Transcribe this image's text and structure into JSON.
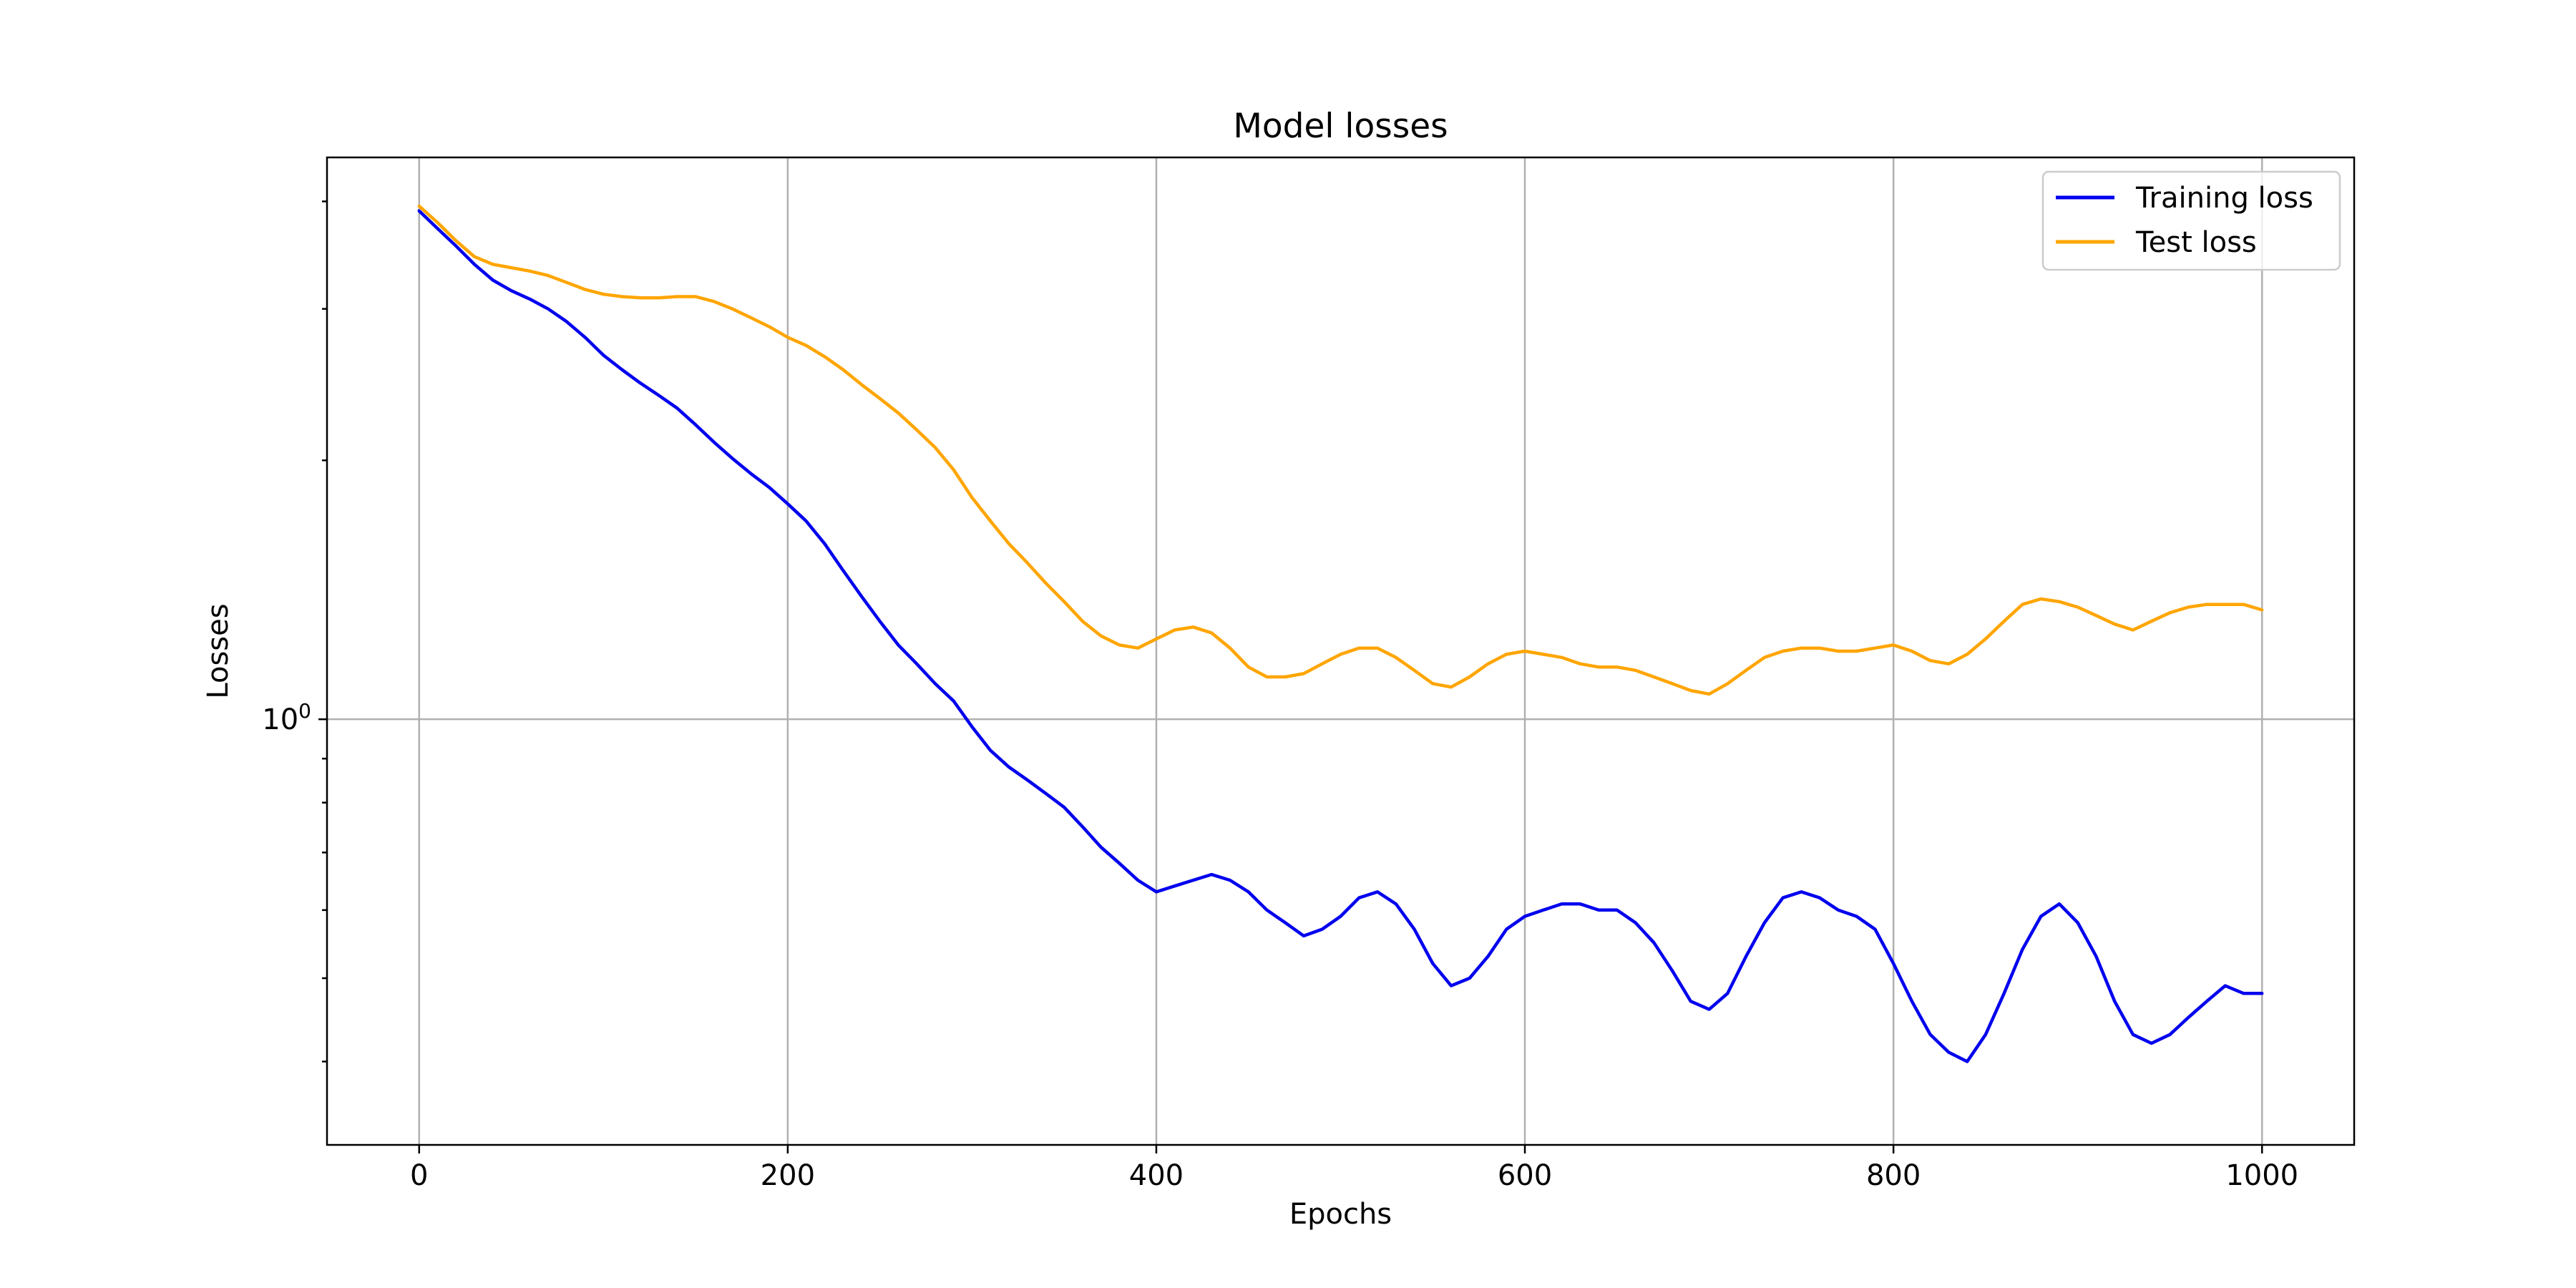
{
  "chart_data": {
    "type": "line",
    "title": "Model losses",
    "xlabel": "Epochs",
    "ylabel": "Losses",
    "xlim": [
      -50,
      1050
    ],
    "ylim": [
      0.32,
      4.5
    ],
    "y_scale": "log",
    "grid": true,
    "legend_position": "top-right",
    "x_ticks": [
      {
        "value": 0,
        "label": "0"
      },
      {
        "value": 200,
        "label": "200"
      },
      {
        "value": 400,
        "label": "400"
      },
      {
        "value": 600,
        "label": "600"
      },
      {
        "value": 800,
        "label": "800"
      },
      {
        "value": 1000,
        "label": "1000"
      }
    ],
    "y_ticks": [
      {
        "value": 1,
        "base": "10",
        "exp": "0"
      }
    ],
    "series": [
      {
        "name": "Training loss",
        "color": "#0000ee",
        "x": [
          0,
          10,
          20,
          30,
          40,
          50,
          60,
          70,
          80,
          90,
          100,
          110,
          120,
          130,
          140,
          150,
          160,
          170,
          180,
          190,
          200,
          210,
          220,
          230,
          240,
          250,
          260,
          270,
          280,
          290,
          300,
          310,
          320,
          330,
          340,
          350,
          360,
          370,
          380,
          390,
          400,
          410,
          420,
          430,
          440,
          450,
          460,
          470,
          480,
          490,
          500,
          510,
          520,
          530,
          540,
          550,
          560,
          570,
          580,
          590,
          600,
          610,
          620,
          630,
          640,
          650,
          660,
          670,
          680,
          690,
          700,
          710,
          720,
          730,
          740,
          750,
          760,
          770,
          780,
          790,
          800,
          810,
          820,
          830,
          840,
          850,
          860,
          870,
          880,
          890,
          900,
          910,
          920,
          930,
          940,
          950,
          960,
          970,
          980,
          990,
          1000
        ],
        "y": [
          3.9,
          3.72,
          3.55,
          3.38,
          3.24,
          3.15,
          3.08,
          3.0,
          2.9,
          2.78,
          2.65,
          2.55,
          2.46,
          2.38,
          2.3,
          2.2,
          2.1,
          2.01,
          1.93,
          1.86,
          1.78,
          1.7,
          1.6,
          1.49,
          1.39,
          1.3,
          1.22,
          1.16,
          1.1,
          1.05,
          0.98,
          0.92,
          0.88,
          0.85,
          0.82,
          0.79,
          0.75,
          0.71,
          0.68,
          0.65,
          0.63,
          0.64,
          0.65,
          0.66,
          0.65,
          0.63,
          0.6,
          0.58,
          0.56,
          0.57,
          0.59,
          0.62,
          0.63,
          0.61,
          0.57,
          0.52,
          0.49,
          0.5,
          0.53,
          0.57,
          0.59,
          0.6,
          0.61,
          0.61,
          0.6,
          0.6,
          0.58,
          0.55,
          0.51,
          0.47,
          0.46,
          0.48,
          0.53,
          0.58,
          0.62,
          0.63,
          0.62,
          0.6,
          0.59,
          0.57,
          0.52,
          0.47,
          0.43,
          0.41,
          0.4,
          0.43,
          0.48,
          0.54,
          0.59,
          0.61,
          0.58,
          0.53,
          0.47,
          0.43,
          0.42,
          0.43,
          0.45,
          0.47,
          0.49,
          0.48,
          0.48
        ]
      },
      {
        "name": "Test loss",
        "color": "#ffa500",
        "x": [
          0,
          10,
          20,
          30,
          40,
          50,
          60,
          70,
          80,
          90,
          100,
          110,
          120,
          130,
          140,
          150,
          160,
          170,
          180,
          190,
          200,
          210,
          220,
          230,
          240,
          250,
          260,
          270,
          280,
          290,
          300,
          310,
          320,
          330,
          340,
          350,
          360,
          370,
          380,
          390,
          400,
          410,
          420,
          430,
          440,
          450,
          460,
          470,
          480,
          490,
          500,
          510,
          520,
          530,
          540,
          550,
          560,
          570,
          580,
          590,
          600,
          610,
          620,
          630,
          640,
          650,
          660,
          670,
          680,
          690,
          700,
          710,
          720,
          730,
          740,
          750,
          760,
          770,
          780,
          790,
          800,
          810,
          820,
          830,
          840,
          850,
          860,
          870,
          880,
          890,
          900,
          910,
          920,
          930,
          940,
          950,
          960,
          970,
          980,
          990,
          1000
        ],
        "y": [
          3.95,
          3.78,
          3.6,
          3.45,
          3.38,
          3.35,
          3.32,
          3.28,
          3.22,
          3.16,
          3.12,
          3.1,
          3.09,
          3.09,
          3.1,
          3.1,
          3.06,
          3.0,
          2.93,
          2.86,
          2.78,
          2.72,
          2.64,
          2.55,
          2.45,
          2.36,
          2.27,
          2.17,
          2.07,
          1.95,
          1.81,
          1.7,
          1.6,
          1.52,
          1.44,
          1.37,
          1.3,
          1.25,
          1.22,
          1.21,
          1.24,
          1.27,
          1.28,
          1.26,
          1.21,
          1.15,
          1.12,
          1.12,
          1.13,
          1.16,
          1.19,
          1.21,
          1.21,
          1.18,
          1.14,
          1.1,
          1.09,
          1.12,
          1.16,
          1.19,
          1.2,
          1.19,
          1.18,
          1.16,
          1.15,
          1.15,
          1.14,
          1.12,
          1.1,
          1.08,
          1.07,
          1.1,
          1.14,
          1.18,
          1.2,
          1.21,
          1.21,
          1.2,
          1.2,
          1.21,
          1.22,
          1.2,
          1.17,
          1.16,
          1.19,
          1.24,
          1.3,
          1.36,
          1.38,
          1.37,
          1.35,
          1.32,
          1.29,
          1.27,
          1.3,
          1.33,
          1.35,
          1.36,
          1.36,
          1.36,
          1.34
        ]
      }
    ]
  }
}
